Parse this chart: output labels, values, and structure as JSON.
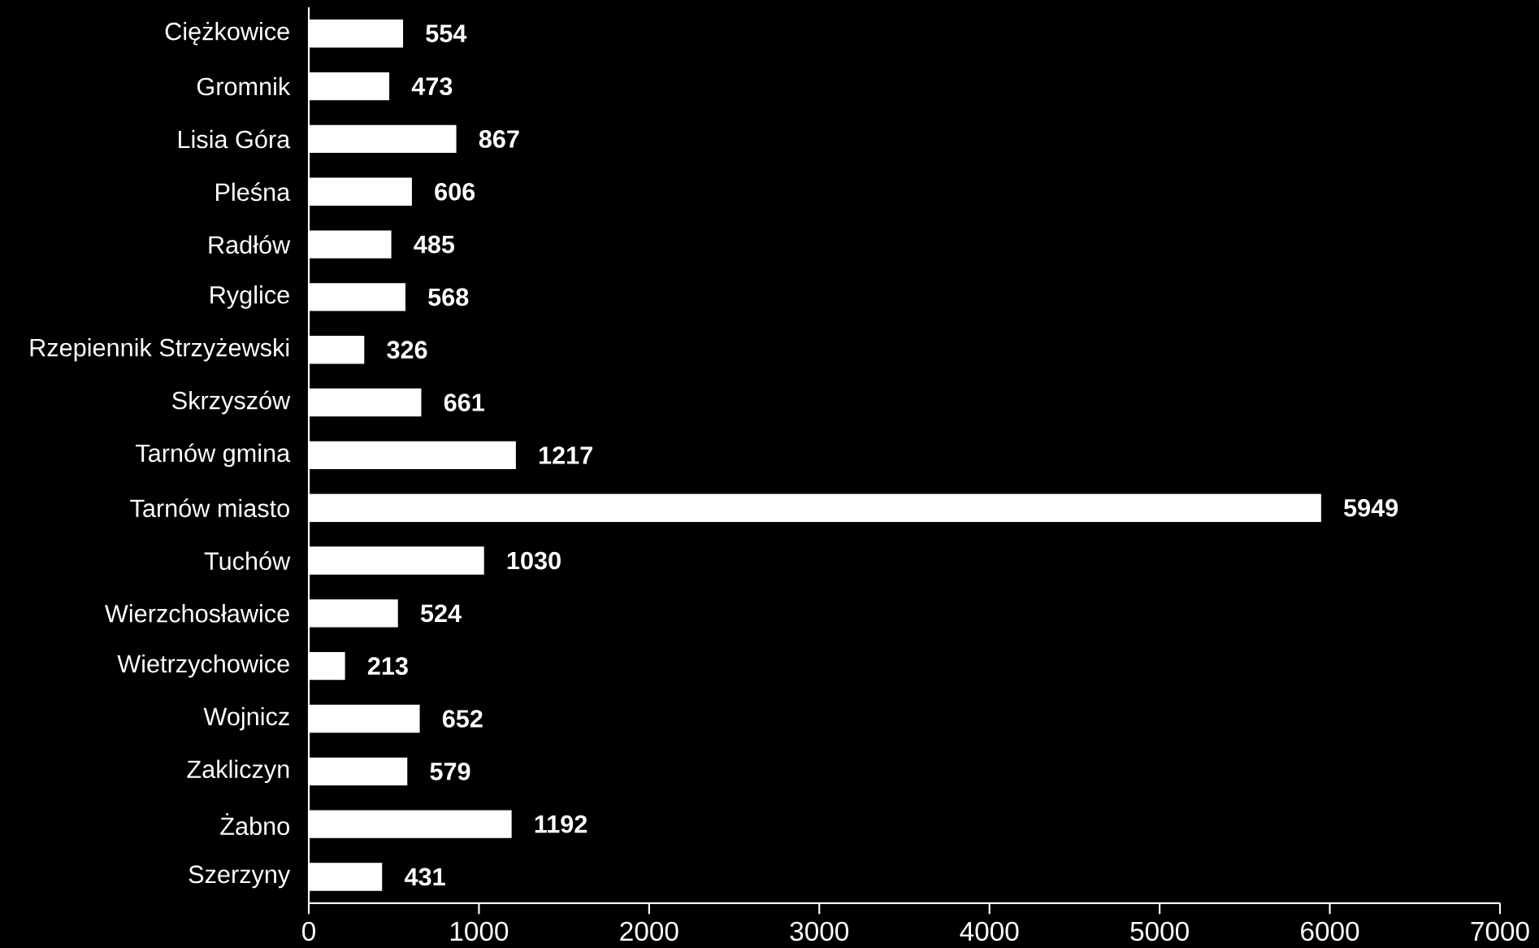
{
  "chart_data": {
    "type": "bar",
    "orientation": "horizontal",
    "data_labels": true,
    "color": "#ffffff",
    "categories": [
      "Ciężkowice",
      "Gromnik",
      "Lisia Góra",
      "Pleśna",
      "Radłów",
      "Ryglice",
      "Rzepiennik Strzyżewski",
      "Skrzyszów",
      "Tarnów gmina",
      "Tarnów miasto",
      "Tuchów",
      "Wierzchosławice",
      "Wietrzychowice",
      "Wojnicz",
      "Zakliczyn",
      "Żabno",
      "Szerzyny"
    ],
    "values": [
      554,
      473,
      867,
      606,
      485,
      568,
      326,
      661,
      1217,
      5949,
      1030,
      524,
      213,
      652,
      579,
      1192,
      431
    ],
    "xlim": [
      0,
      7000
    ],
    "xticks": [
      0,
      1000,
      2000,
      3000,
      4000,
      5000,
      6000,
      7000
    ],
    "grid": false
  }
}
